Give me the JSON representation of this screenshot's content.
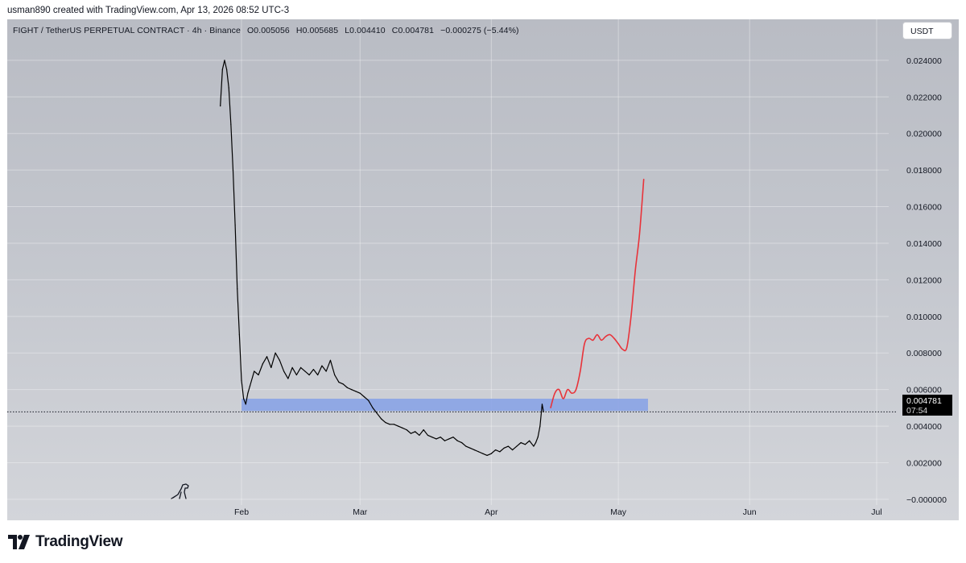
{
  "header": {
    "byline": "usman890 created with TradingView.com, Apr 13, 2026 08:52 UTC-3"
  },
  "symbol": {
    "name": "FIGHT / TetherUS PERPETUAL CONTRACT · 4h · Binance",
    "open": "O0.005056",
    "high": "H0.005685",
    "low": "L0.004410",
    "close": "C0.004781",
    "change": "−0.000275 (−5.44%)"
  },
  "currency_button": "USDT",
  "price_tag": {
    "price": "0.004781",
    "countdown": "07:54"
  },
  "footer": {
    "brand": "TradingView"
  },
  "chart_data": {
    "type": "line",
    "x_type": "date",
    "ylim": [
      -0.0004,
      0.0258
    ],
    "y_ticks": [
      "0.024000",
      "0.022000",
      "0.020000",
      "0.018000",
      "0.016000",
      "0.014000",
      "0.012000",
      "0.010000",
      "0.008000",
      "0.006000",
      "0.004000",
      "0.002000",
      "−0.000000"
    ],
    "y_tick_values": [
      0.024,
      0.022,
      0.02,
      0.018,
      0.016,
      0.014,
      0.012,
      0.01,
      0.008,
      0.006,
      0.004,
      0.002,
      0.0
    ],
    "x_ticks": [
      {
        "label": "Feb",
        "date": "2026-02-01"
      },
      {
        "label": "Mar",
        "date": "2026-03-01"
      },
      {
        "label": "Apr",
        "date": "2026-04-01"
      },
      {
        "label": "May",
        "date": "2026-05-01"
      },
      {
        "label": "Jun",
        "date": "2026-06-01"
      },
      {
        "label": "Jul",
        "date": "2026-07-01"
      }
    ],
    "grid": true,
    "series": [
      {
        "color": "#000000",
        "points": [
          [
            "2026-01-27",
            0.0215
          ],
          [
            "2026-01-27T12",
            0.0235
          ],
          [
            "2026-01-28",
            0.024
          ],
          [
            "2026-01-28T12",
            0.0235
          ],
          [
            "2026-01-29",
            0.0225
          ],
          [
            "2026-01-29T12",
            0.0205
          ],
          [
            "2026-01-30",
            0.018
          ],
          [
            "2026-01-30T12",
            0.015
          ],
          [
            "2026-01-31",
            0.0115
          ],
          [
            "2026-01-31T12",
            0.009
          ],
          [
            "2026-02-01",
            0.0065
          ],
          [
            "2026-02-01T12",
            0.0055
          ],
          [
            "2026-02-02",
            0.0052
          ],
          [
            "2026-02-02T12",
            0.0058
          ],
          [
            "2026-02-03",
            0.0062
          ],
          [
            "2026-02-04",
            0.007
          ],
          [
            "2026-02-05",
            0.0068
          ],
          [
            "2026-02-06",
            0.0074
          ],
          [
            "2026-02-07",
            0.0078
          ],
          [
            "2026-02-08",
            0.0072
          ],
          [
            "2026-02-09",
            0.008
          ],
          [
            "2026-02-10",
            0.0076
          ],
          [
            "2026-02-11",
            0.007
          ],
          [
            "2026-02-12",
            0.0066
          ],
          [
            "2026-02-13",
            0.0072
          ],
          [
            "2026-02-14",
            0.0068
          ],
          [
            "2026-02-15",
            0.0072
          ],
          [
            "2026-02-16",
            0.007
          ],
          [
            "2026-02-17",
            0.0068
          ],
          [
            "2026-02-18",
            0.0071
          ],
          [
            "2026-02-19",
            0.0068
          ],
          [
            "2026-02-20",
            0.0073
          ],
          [
            "2026-02-21",
            0.007
          ],
          [
            "2026-02-22",
            0.0076
          ],
          [
            "2026-02-23",
            0.0068
          ],
          [
            "2026-02-24",
            0.0064
          ],
          [
            "2026-02-25",
            0.0063
          ],
          [
            "2026-02-26",
            0.0061
          ],
          [
            "2026-02-27",
            0.006
          ],
          [
            "2026-02-28",
            0.0059
          ],
          [
            "2026-03-01",
            0.0058
          ],
          [
            "2026-03-02",
            0.0056
          ],
          [
            "2026-03-03",
            0.0054
          ],
          [
            "2026-03-04",
            0.005
          ],
          [
            "2026-03-05",
            0.0047
          ],
          [
            "2026-03-06",
            0.0044
          ],
          [
            "2026-03-07",
            0.0042
          ],
          [
            "2026-03-08",
            0.0041
          ],
          [
            "2026-03-09",
            0.0041
          ],
          [
            "2026-03-10",
            0.004
          ],
          [
            "2026-03-11",
            0.0039
          ],
          [
            "2026-03-12",
            0.0038
          ],
          [
            "2026-03-13",
            0.0036
          ],
          [
            "2026-03-14",
            0.0037
          ],
          [
            "2026-03-15",
            0.0035
          ],
          [
            "2026-03-16",
            0.0038
          ],
          [
            "2026-03-17",
            0.0035
          ],
          [
            "2026-03-18",
            0.0034
          ],
          [
            "2026-03-19",
            0.0033
          ],
          [
            "2026-03-20",
            0.0034
          ],
          [
            "2026-03-21",
            0.0032
          ],
          [
            "2026-03-22",
            0.0033
          ],
          [
            "2026-03-23",
            0.0034
          ],
          [
            "2026-03-24",
            0.0032
          ],
          [
            "2026-03-25",
            0.0031
          ],
          [
            "2026-03-26",
            0.0029
          ],
          [
            "2026-03-27",
            0.0028
          ],
          [
            "2026-03-28",
            0.0027
          ],
          [
            "2026-03-29",
            0.0026
          ],
          [
            "2026-03-30",
            0.0025
          ],
          [
            "2026-03-31",
            0.0024
          ],
          [
            "2026-04-01",
            0.0025
          ],
          [
            "2026-04-02",
            0.0027
          ],
          [
            "2026-04-03",
            0.0026
          ],
          [
            "2026-04-04",
            0.0028
          ],
          [
            "2026-04-05",
            0.0029
          ],
          [
            "2026-04-06",
            0.0027
          ],
          [
            "2026-04-07",
            0.0029
          ],
          [
            "2026-04-08",
            0.0031
          ],
          [
            "2026-04-09",
            0.003
          ],
          [
            "2026-04-10",
            0.0032
          ],
          [
            "2026-04-11",
            0.0029
          ],
          [
            "2026-04-11T12",
            0.0031
          ],
          [
            "2026-04-12",
            0.0034
          ],
          [
            "2026-04-12T12",
            0.004
          ],
          [
            "2026-04-13",
            0.0052
          ],
          [
            "2026-04-13T08",
            0.00478
          ]
        ]
      },
      {
        "color": "#e8333a",
        "points": [
          [
            "2026-04-15",
            0.005
          ],
          [
            "2026-04-16",
            0.0058
          ],
          [
            "2026-04-17",
            0.006
          ],
          [
            "2026-04-18",
            0.0055
          ],
          [
            "2026-04-19",
            0.006
          ],
          [
            "2026-04-20",
            0.0058
          ],
          [
            "2026-04-21",
            0.006
          ],
          [
            "2026-04-22",
            0.007
          ],
          [
            "2026-04-23",
            0.0085
          ],
          [
            "2026-04-24",
            0.0088
          ],
          [
            "2026-04-25",
            0.0087
          ],
          [
            "2026-04-26",
            0.009
          ],
          [
            "2026-04-27",
            0.0087
          ],
          [
            "2026-04-28",
            0.0089
          ],
          [
            "2026-04-29",
            0.009
          ],
          [
            "2026-04-30",
            0.0088
          ],
          [
            "2026-05-01",
            0.0085
          ],
          [
            "2026-05-02",
            0.0082
          ],
          [
            "2026-05-03",
            0.0083
          ],
          [
            "2026-05-04",
            0.01
          ],
          [
            "2026-05-05",
            0.0125
          ],
          [
            "2026-05-06",
            0.0145
          ],
          [
            "2026-05-07",
            0.0175
          ]
        ]
      }
    ],
    "zones": [
      {
        "date_start": "2026-02-01",
        "date_end": "2026-05-08",
        "price_low": 0.00483,
        "price_high": 0.0055,
        "color": "#8aa3e6"
      }
    ],
    "current_price": 0.004781
  }
}
